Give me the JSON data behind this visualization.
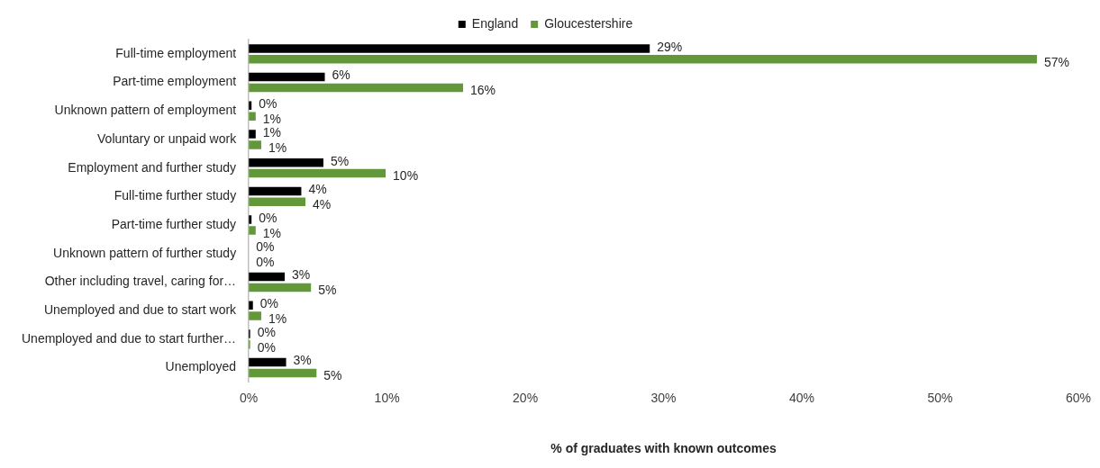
{
  "chart_data": {
    "type": "bar",
    "orientation": "horizontal",
    "xlabel": "% of graduates with known outcomes",
    "legend": "top",
    "grid": false,
    "categories": [
      "Full-time employment",
      "Part-time employment",
      "Unknown pattern of employment",
      "Voluntary or unpaid work",
      "Employment and further study",
      "Full-time further study",
      "Part-time further study",
      "Unknown pattern of further study",
      "Other including travel, caring for…",
      "Unemployed and due to start work",
      "Unemployed and due to start further…",
      "Unemployed"
    ],
    "xlim": [
      0,
      60
    ],
    "xticks": [
      {
        "value": 0,
        "label": "0%"
      },
      {
        "value": 10,
        "label": "10%"
      },
      {
        "value": 20,
        "label": "20%"
      },
      {
        "value": 30,
        "label": "30%"
      },
      {
        "value": 40,
        "label": "40%"
      },
      {
        "value": 50,
        "label": "50%"
      },
      {
        "value": 60,
        "label": "60%"
      }
    ],
    "series": [
      {
        "name": "England",
        "color": "#000000",
        "values": [
          29.0,
          5.5,
          0.2,
          0.5,
          5.4,
          3.8,
          0.2,
          0,
          2.6,
          0.3,
          0.1,
          2.7
        ],
        "value_labels": [
          "29%",
          "6%",
          "0%",
          "1%",
          "5%",
          "4%",
          "0%",
          "0%",
          "3%",
          "0%",
          "0%",
          "3%"
        ]
      },
      {
        "name": "Gloucestershire",
        "color": "#62973a",
        "values": [
          57.0,
          15.5,
          0.5,
          0.9,
          9.9,
          4.1,
          0.5,
          0,
          4.5,
          0.9,
          0.1,
          4.9
        ],
        "value_labels": [
          "57%",
          "16%",
          "1%",
          "1%",
          "10%",
          "4%",
          "1%",
          "0%",
          "5%",
          "1%",
          "0%",
          "5%"
        ]
      }
    ]
  }
}
